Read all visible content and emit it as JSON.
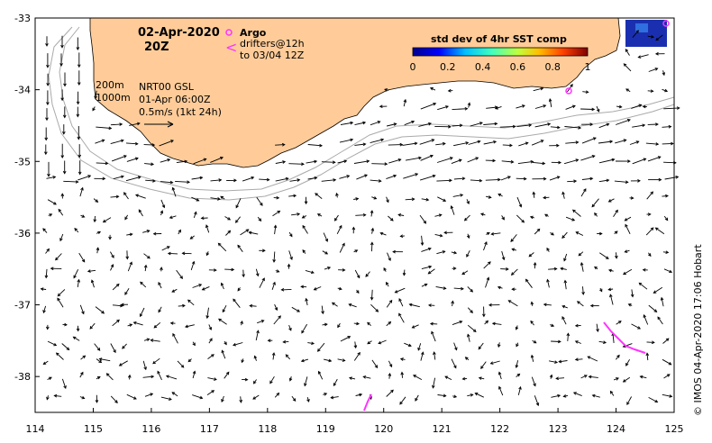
{
  "map": {
    "date_title": "02-Apr-2020",
    "time_title": "20Z",
    "legend": {
      "argo_label": "Argo",
      "drifters_label": "drifters@12h",
      "drifters_label2": "to 03/04 12Z"
    },
    "isobaths": [
      "200m",
      "1000m"
    ],
    "product": "NRT00 GSL",
    "product_time": "01-Apr 06:00Z",
    "scale_label": "0.5m/s (1kt 24h)",
    "colorbar": {
      "title": "std dev of 4hr SST comp",
      "ticks": [
        "0",
        "0.2",
        "0.4",
        "0.6",
        "0.8",
        "1"
      ]
    },
    "credit": "© IMOS 04-Apr-2020 17:06 Hobart",
    "x_axis": {
      "ticks": [
        "114",
        "115",
        "116",
        "117",
        "118",
        "119",
        "120",
        "121",
        "122",
        "123",
        "124",
        "125"
      ],
      "range": [
        114,
        125
      ]
    },
    "y_axis": {
      "ticks": [
        "-33",
        "-34",
        "-35",
        "-36",
        "-37",
        "-38"
      ],
      "range": [
        -38.5,
        -33
      ]
    },
    "colors": {
      "land": "#FFCC99",
      "ocean": "#FFFFFF",
      "argo": "#FF33FF",
      "drifter": "#FF33FF",
      "isobath": "#AAAAAA"
    }
  }
}
